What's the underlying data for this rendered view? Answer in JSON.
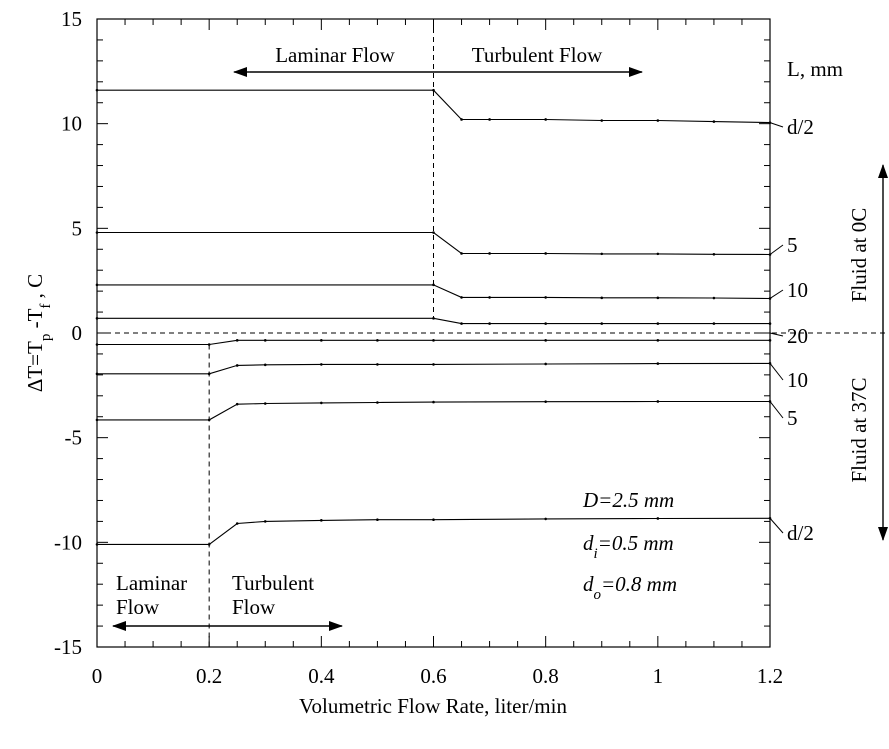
{
  "chart_data": {
    "type": "line",
    "xlabel": "Volumetric Flow Rate, liter/min",
    "ylabel": "ΔT=T_p-T_f, C",
    "xlim": [
      0,
      1.2
    ],
    "ylim": [
      -15,
      15
    ],
    "x_ticks": [
      "0",
      "0.2",
      "0.4",
      "0.6",
      "0.8",
      "1",
      "1.2"
    ],
    "y_ticks": [
      "-15",
      "-10",
      "-5",
      "0",
      "5",
      "10",
      "15"
    ],
    "x_tick_values": [
      0,
      0.2,
      0.4,
      0.6,
      0.8,
      1.0,
      1.2
    ],
    "y_tick_values": [
      -15,
      -10,
      -5,
      0,
      5,
      10,
      15
    ],
    "series": [
      {
        "label": "d/2",
        "x": [
          0,
          0.6,
          0.65,
          0.7,
          0.8,
          0.9,
          1.0,
          1.1,
          1.2
        ],
        "y": [
          11.6,
          11.6,
          10.2,
          10.2,
          10.2,
          10.15,
          10.15,
          10.1,
          10.05
        ]
      },
      {
        "label": "5",
        "x": [
          0,
          0.6,
          0.65,
          0.7,
          0.8,
          0.9,
          1.0,
          1.1,
          1.2
        ],
        "y": [
          4.8,
          4.8,
          3.8,
          3.8,
          3.8,
          3.78,
          3.78,
          3.76,
          3.75
        ]
      },
      {
        "label": "10",
        "x": [
          0,
          0.6,
          0.65,
          0.7,
          0.8,
          0.9,
          1.0,
          1.1,
          1.2
        ],
        "y": [
          2.3,
          2.3,
          1.7,
          1.7,
          1.7,
          1.68,
          1.68,
          1.67,
          1.65
        ]
      },
      {
        "label": "20",
        "x": [
          0,
          0.6,
          0.65,
          0.7,
          0.8,
          0.9,
          1.0,
          1.1,
          1.2
        ],
        "y": [
          0.7,
          0.7,
          0.45,
          0.45,
          0.45,
          0.45,
          0.45,
          0.45,
          0.45
        ]
      },
      {
        "label": "20",
        "x": [
          0,
          0.2,
          0.25,
          0.3,
          0.4,
          0.5,
          0.6,
          0.8,
          1.0,
          1.2
        ],
        "y": [
          -0.55,
          -0.55,
          -0.35,
          -0.35,
          -0.35,
          -0.35,
          -0.35,
          -0.35,
          -0.35,
          -0.35
        ]
      },
      {
        "label": "10",
        "x": [
          0,
          0.2,
          0.25,
          0.3,
          0.4,
          0.5,
          0.6,
          0.8,
          1.0,
          1.2
        ],
        "y": [
          -1.95,
          -1.95,
          -1.55,
          -1.52,
          -1.5,
          -1.5,
          -1.5,
          -1.48,
          -1.46,
          -1.45
        ]
      },
      {
        "label": "5",
        "x": [
          0,
          0.2,
          0.25,
          0.3,
          0.4,
          0.5,
          0.6,
          0.8,
          1.0,
          1.2
        ],
        "y": [
          -4.15,
          -4.15,
          -3.4,
          -3.37,
          -3.34,
          -3.32,
          -3.3,
          -3.28,
          -3.27,
          -3.27
        ]
      },
      {
        "label": "d/2",
        "x": [
          0,
          0.2,
          0.25,
          0.3,
          0.4,
          0.5,
          0.6,
          0.8,
          1.0,
          1.2
        ],
        "y": [
          -10.1,
          -10.1,
          -9.1,
          -9.0,
          -8.95,
          -8.92,
          -8.92,
          -8.88,
          -8.86,
          -8.85
        ]
      }
    ],
    "vlines": [
      0.6,
      0.2
    ],
    "hline": 0,
    "right_labels": [
      "L, mm",
      "d/2",
      "5",
      "10",
      "20",
      "10",
      "5",
      "d/2"
    ],
    "right_label_values": [
      null,
      10.05,
      3.75,
      1.65,
      0,
      -1.45,
      -3.27,
      -8.85
    ],
    "annotations": {
      "laminar_top": "Laminar Flow",
      "turbulent_top": "Turbulent Flow",
      "laminar_bottom_1": "Laminar",
      "laminar_bottom_2": "Flow",
      "turbulent_bottom_1": "Turbulent",
      "turbulent_bottom_2": "Flow",
      "fluid_cold": "Fluid at 0C",
      "fluid_warm": "Fluid at 37C",
      "D_label": "D=2.5 mm",
      "di_main": "d",
      "di_sub": "i",
      "di_value": "=0.5 mm",
      "do_main": "d",
      "do_sub": "o",
      "do_value": "=0.8 mm"
    }
  }
}
